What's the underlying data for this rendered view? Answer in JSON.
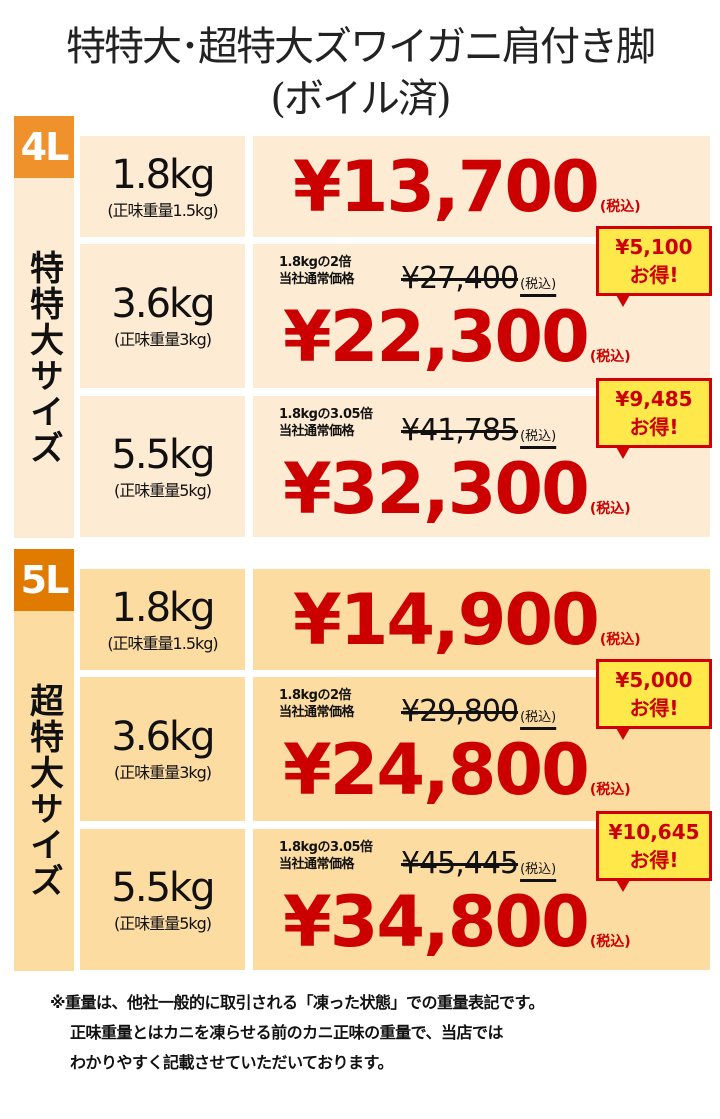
{
  "title": {
    "line1": "特特大･超特大ズワイガニ肩付き脚",
    "line2": "(ボイル済)"
  },
  "tax_label": "(税込)",
  "sections": [
    {
      "grade": "4L",
      "size_label": "特特大サイズ",
      "badge_color": "#f0922b",
      "cell_color": "#fdebd3",
      "rows": [
        {
          "weight": "1.8kg",
          "net": "(正味重量1.5kg)",
          "price": "¥13,700"
        },
        {
          "weight": "3.6kg",
          "net": "(正味重量3kg)",
          "note1": "1.8kgの2倍",
          "note2": "当社通常価格",
          "regular": "¥27,400",
          "price": "¥22,300",
          "savings1": "¥5,100",
          "savings2": "お得!"
        },
        {
          "weight": "5.5kg",
          "net": "(正味重量5kg)",
          "note1": "1.8kgの3.05倍",
          "note2": "当社通常価格",
          "regular": "¥41,785",
          "price": "¥32,300",
          "savings1": "¥9,485",
          "savings2": "お得!"
        }
      ]
    },
    {
      "grade": "5L",
      "size_label": "超特大サイズ",
      "badge_color": "#e07b00",
      "cell_color": "#fddca2",
      "rows": [
        {
          "weight": "1.8kg",
          "net": "(正味重量1.5kg)",
          "price": "¥14,900"
        },
        {
          "weight": "3.6kg",
          "net": "(正味重量3kg)",
          "note1": "1.8kgの2倍",
          "note2": "当社通常価格",
          "regular": "¥29,800",
          "price": "¥24,800",
          "savings1": "¥5,000",
          "savings2": "お得!"
        },
        {
          "weight": "5.5kg",
          "net": "(正味重量5kg)",
          "note1": "1.8kgの3.05倍",
          "note2": "当社通常価格",
          "regular": "¥45,445",
          "price": "¥34,800",
          "savings1": "¥10,645",
          "savings2": "お得!"
        }
      ]
    }
  ],
  "footnote": [
    "※重量は、他社一般的に取引される「凍った状態」での重量表記です。",
    "正味重量とはカニを凍らせる前のカニ正味の重量で、当店では",
    "わかりやすく記載させていただいております。"
  ],
  "colors": {
    "price_red": "#cc0000",
    "savings_bg": "#ffe94a"
  }
}
